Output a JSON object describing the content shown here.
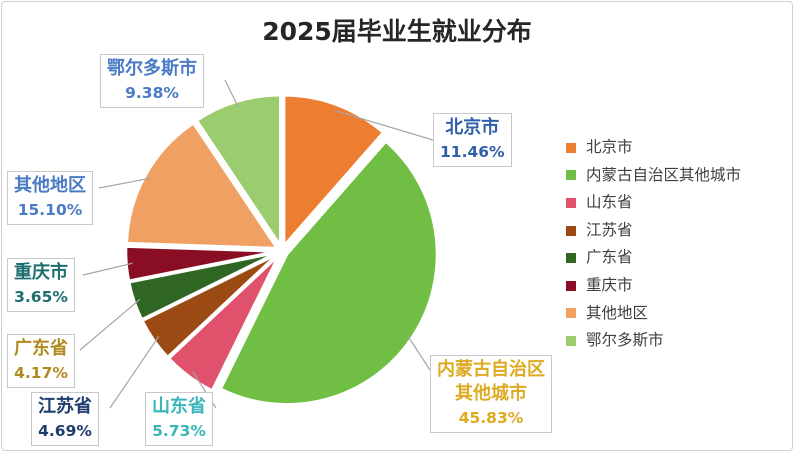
{
  "chart_data": {
    "type": "pie",
    "title": "2025届毕业生就业分布",
    "slices": [
      {
        "name": "北京市",
        "label_lines": [
          "北京市"
        ],
        "value": 11.46,
        "value_label": "11.46%",
        "color": "#ED7D31",
        "label_color": "#2E5FA8",
        "offset": 6
      },
      {
        "name": "内蒙古自治区其他城市",
        "label_lines": [
          "内蒙古自治区",
          "其他城市"
        ],
        "value": 45.83,
        "value_label": "45.83%",
        "color": "#70BF44",
        "label_color": "#DDAA22",
        "offset": 6
      },
      {
        "name": "山东省",
        "label_lines": [
          "山东省"
        ],
        "value": 5.73,
        "value_label": "5.73%",
        "color": "#E0516B",
        "label_color": "#3AB6B8",
        "offset": 6
      },
      {
        "name": "江苏省",
        "label_lines": [
          "江苏省"
        ],
        "value": 4.69,
        "value_label": "4.69%",
        "color": "#9C4A14",
        "label_color": "#1F3C6E",
        "offset": 6
      },
      {
        "name": "广东省",
        "label_lines": [
          "广东省"
        ],
        "value": 4.17,
        "value_label": "4.17%",
        "color": "#2F6624",
        "label_color": "#B08A20",
        "offset": 6
      },
      {
        "name": "重庆市",
        "label_lines": [
          "重庆市"
        ],
        "value": 3.65,
        "value_label": "3.65%",
        "color": "#8A0E23",
        "label_color": "#1E6E6E",
        "offset": 6
      },
      {
        "name": "其他地区",
        "label_lines": [
          "其他地区"
        ],
        "value": 15.1,
        "value_label": "15.10%",
        "color": "#F0A062",
        "label_color": "#4A7BC4",
        "offset": 6
      },
      {
        "name": "鄂尔多斯市",
        "label_lines": [
          "鄂尔多斯市"
        ],
        "value": 9.38,
        "value_label": "9.38%",
        "color": "#9BCC6E",
        "label_color": "#4A7BC4",
        "offset": 6
      }
    ],
    "legend_position": "right"
  }
}
